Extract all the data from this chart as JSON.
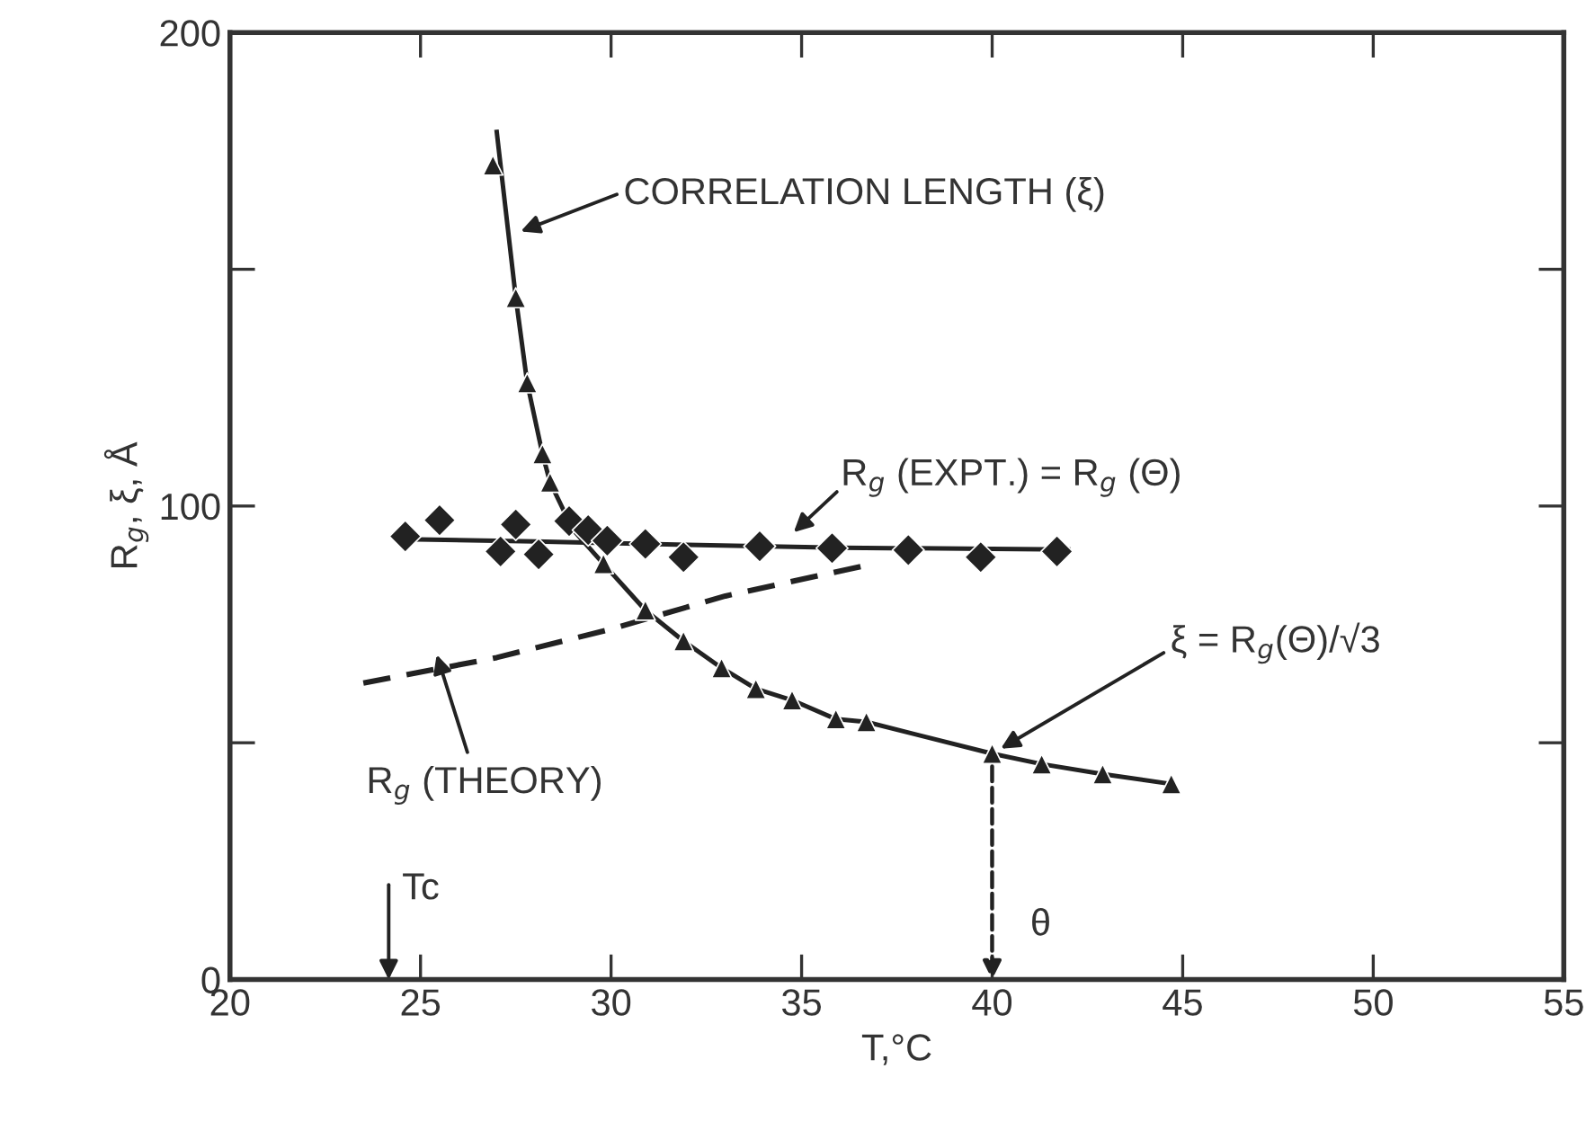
{
  "chart_data": {
    "type": "line",
    "xlabel": "T,°C",
    "ylabel": "R$_{g}$, ξ, Å",
    "xlim": [
      20,
      55
    ],
    "xticks": [
      20,
      25,
      30,
      35,
      40,
      45,
      50,
      55
    ],
    "ylim": [
      0,
      200
    ],
    "yticks": [
      0,
      {
        "value": 50,
        "label": null
      },
      100,
      {
        "value": 150,
        "label": null
      },
      200
    ],
    "series": [
      {
        "color": "#222222",
        "marker": "none",
        "line_style": "solid",
        "x": [
          27.0,
          27.5,
          27.8,
          28.2,
          28.4,
          29.0,
          29.8,
          30.9,
          31.9,
          32.9,
          33.8,
          34.75,
          35.9,
          36.7,
          40.0,
          41.3,
          42.9,
          44.7
        ],
        "values": [
          179,
          144,
          126,
          111,
          105,
          95,
          87.8,
          78,
          71.5,
          65.8,
          61.4,
          59,
          55,
          54.4,
          47.7,
          45.5,
          43.4,
          41.3
        ]
      },
      {
        "type": "scatter",
        "color": "#222222",
        "marker": "triangle",
        "x": [
          26.9,
          27.5,
          27.8,
          28.2,
          28.4,
          29.8,
          30.9,
          31.9,
          32.9,
          33.8,
          34.75,
          35.9,
          36.7,
          40.0,
          41.3,
          42.9,
          44.7
        ],
        "values": [
          172,
          144,
          126,
          111,
          105,
          87.8,
          78,
          71.5,
          65.8,
          61.4,
          59,
          55,
          54.4,
          47.7,
          45.5,
          43.4,
          41.3
        ]
      },
      {
        "color": "#222222",
        "marker": "none",
        "line_style": "solid",
        "x": [
          24.6,
          28,
          32,
          36,
          42
        ],
        "values": [
          93,
          92.5,
          91.8,
          91.2,
          90.8
        ]
      },
      {
        "type": "scatter",
        "color": "#222222",
        "marker": "diamond",
        "x": [
          24.6,
          25.5,
          27.1,
          27.5,
          28.1,
          28.9,
          29.4,
          29.9,
          30.9,
          31.9,
          33.9,
          35.8,
          37.8,
          39.7,
          41.7
        ],
        "values": [
          93.6,
          97,
          90.4,
          96.1,
          89.8,
          96.8,
          94.9,
          92.7,
          92,
          89.2,
          91.5,
          91.1,
          90.7,
          89.2,
          90.4
        ]
      },
      {
        "color": "#222222",
        "marker": "none",
        "line_style": "dashed",
        "x": [
          23.5,
          27,
          30,
          33,
          36.6
        ],
        "values": [
          62.6,
          68,
          74,
          81,
          87.3
        ]
      }
    ],
    "annotations": [
      "CORRELATION LENGTH (ξ)",
      {
        "text": "R$_{g}$ (EXPT.) = R$_{g}$ (Θ)",
        "x": 34.6,
        "y": 93
      },
      "R$_{g}$ (THEORY)",
      {
        "text": "ξ = R$_{g}$(Θ)/√3",
        "x": 40,
        "y": 47.7
      },
      "Tc",
      "θ"
    ],
    "grid": false
  }
}
